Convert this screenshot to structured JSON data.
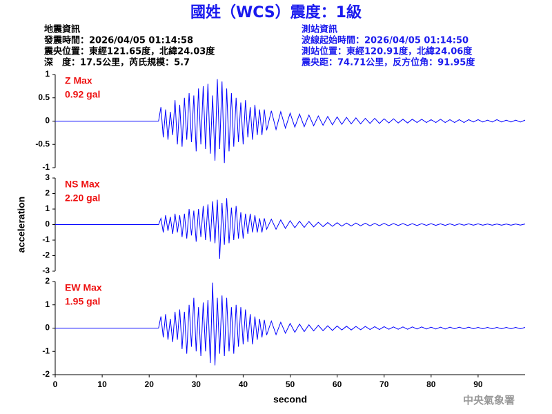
{
  "header": {
    "title": "國姓（WCS）震度：1級",
    "left": [
      "地震資訊",
      "發震時間：2026/04/05 01:14:58",
      "震央位置：東經121.65度，北緯24.03度",
      "深　度：17.5公里，芮氏規模：5.7"
    ],
    "right": [
      "測站資訊",
      "波線起始時間：2026/04/05 01:14:50",
      "測站位置：東經120.91度，北緯24.06度",
      "震央距：74.71公里，反方位角：91.95度"
    ]
  },
  "footer": "中央氣象署",
  "chart_data": [
    {
      "type": "line",
      "annotations": [
        "Z Max",
        "0.92 gal"
      ],
      "annotation_color": "#ee1111",
      "xlim": [
        0,
        100
      ],
      "ylim": [
        -1,
        1
      ],
      "yticks": [
        -1,
        -0.5,
        0,
        0.5,
        1
      ],
      "x": [
        0,
        22,
        22.5,
        23,
        23.5,
        24,
        24.5,
        25,
        25.5,
        26,
        26.5,
        27,
        27.5,
        28,
        28.5,
        29,
        29.5,
        30,
        30.5,
        31,
        31.5,
        32,
        32.5,
        33,
        33.5,
        34,
        34.5,
        35,
        35.5,
        36,
        36.5,
        37,
        37.5,
        38,
        38.5,
        39,
        39.5,
        40,
        40.5,
        41,
        41.5,
        42,
        42.5,
        43,
        43.5,
        44,
        44.5,
        45,
        46,
        47,
        48,
        49,
        50,
        51,
        52,
        53,
        54,
        55,
        56,
        57,
        58,
        59,
        60,
        61,
        62,
        63,
        64,
        65,
        66,
        67,
        68,
        69,
        70,
        71,
        72,
        73,
        74,
        75,
        76,
        77,
        78,
        79,
        80,
        81,
        82,
        83,
        84,
        85,
        86,
        87,
        88,
        89,
        90,
        91,
        92,
        93,
        94,
        95,
        96,
        97,
        98,
        99,
        100
      ],
      "series": [
        {
          "color": "#0000ff",
          "values": [
            0,
            0,
            0.3,
            -0.35,
            0.25,
            -0.4,
            0.2,
            -0.3,
            0.45,
            -0.5,
            0.35,
            -0.55,
            0.5,
            -0.4,
            0.6,
            -0.45,
            0.55,
            -0.65,
            0.7,
            -0.5,
            0.75,
            -0.6,
            0.8,
            -0.7,
            0.55,
            -0.85,
            0.9,
            -0.6,
            0.85,
            -0.9,
            0.7,
            -0.65,
            0.6,
            -0.55,
            0.5,
            -0.45,
            0.4,
            -0.5,
            0.45,
            -0.35,
            0.3,
            -0.4,
            0.35,
            -0.3,
            0.25,
            -0.3,
            0.25,
            -0.2,
            0.22,
            -0.18,
            0.2,
            -0.15,
            0.17,
            -0.13,
            0.15,
            -0.12,
            0.13,
            -0.1,
            0.11,
            -0.09,
            0.1,
            -0.08,
            0.09,
            -0.07,
            0.08,
            -0.06,
            0.07,
            -0.06,
            0.06,
            -0.05,
            0.06,
            -0.05,
            0.05,
            -0.04,
            0.05,
            -0.04,
            0.04,
            -0.04,
            0.04,
            -0.03,
            0.04,
            -0.03,
            0.03,
            -0.03,
            0.04,
            -0.03,
            0.03,
            -0.03,
            0.03,
            -0.03,
            0.03,
            -0.02,
            0.03,
            -0.02,
            0.02,
            -0.02,
            0.03,
            -0.02,
            0.02,
            -0.02,
            0.02,
            -0.02,
            0.02
          ]
        }
      ]
    },
    {
      "type": "line",
      "annotations": [
        "NS Max",
        "2.20 gal"
      ],
      "annotation_color": "#ee1111",
      "ylabel": "acceleration",
      "xlim": [
        0,
        100
      ],
      "ylim": [
        -3,
        3
      ],
      "yticks": [
        -3,
        -2,
        -1,
        0,
        1,
        2,
        3
      ],
      "x": [
        0,
        22,
        22.5,
        23,
        23.5,
        24,
        24.5,
        25,
        25.5,
        26,
        26.5,
        27,
        27.5,
        28,
        28.5,
        29,
        29.5,
        30,
        30.5,
        31,
        31.5,
        32,
        32.5,
        33,
        33.5,
        34,
        34.5,
        35,
        35.5,
        36,
        36.5,
        37,
        37.5,
        38,
        38.5,
        39,
        39.5,
        40,
        40.5,
        41,
        41.5,
        42,
        42.5,
        43,
        43.5,
        44,
        44.5,
        45,
        46,
        47,
        48,
        49,
        50,
        51,
        52,
        53,
        54,
        55,
        56,
        57,
        58,
        59,
        60,
        61,
        62,
        63,
        64,
        65,
        66,
        67,
        68,
        69,
        70,
        71,
        72,
        73,
        74,
        75,
        76,
        77,
        78,
        79,
        80,
        81,
        82,
        83,
        84,
        85,
        86,
        87,
        88,
        89,
        90,
        91,
        92,
        93,
        94,
        95,
        96,
        97,
        98,
        99,
        100
      ],
      "series": [
        {
          "color": "#0000ff",
          "values": [
            0,
            0,
            0.4,
            -0.5,
            0.6,
            -0.4,
            0.5,
            -0.6,
            0.7,
            -0.5,
            0.6,
            -0.8,
            0.7,
            -0.9,
            1.0,
            -0.7,
            0.9,
            -1.1,
            1.0,
            -0.8,
            1.2,
            -1.0,
            1.3,
            -1.1,
            1.5,
            -1.2,
            1.6,
            -2.2,
            1.4,
            -1.3,
            1.7,
            -1.2,
            1.1,
            -1.0,
            1.2,
            -0.9,
            0.8,
            -0.9,
            0.7,
            -0.6,
            0.7,
            -0.5,
            0.6,
            -0.5,
            0.4,
            -0.5,
            0.4,
            -0.3,
            0.35,
            -0.3,
            0.3,
            -0.25,
            0.25,
            -0.2,
            0.22,
            -0.18,
            0.2,
            -0.15,
            0.15,
            -0.13,
            0.13,
            -0.11,
            0.12,
            -0.1,
            0.1,
            -0.09,
            0.1,
            -0.08,
            0.09,
            -0.08,
            0.08,
            -0.07,
            0.08,
            -0.07,
            0.07,
            -0.06,
            0.07,
            -0.06,
            0.06,
            -0.06,
            0.06,
            -0.05,
            0.06,
            -0.05,
            0.05,
            -0.05,
            0.05,
            -0.05,
            0.05,
            -0.04,
            0.05,
            -0.04,
            0.05,
            -0.04,
            0.04,
            -0.04,
            0.04,
            -0.04,
            0.04,
            -0.04,
            0.04,
            -0.03,
            0.04
          ]
        }
      ]
    },
    {
      "type": "line",
      "annotations": [
        "EW Max",
        "1.95 gal"
      ],
      "annotation_color": "#ee1111",
      "xlabel": "second",
      "xlim": [
        0,
        100
      ],
      "xticks": [
        0,
        10,
        20,
        30,
        40,
        50,
        60,
        70,
        80,
        90
      ],
      "ylim": [
        -2,
        2
      ],
      "yticks": [
        -2,
        -1,
        0,
        1,
        2
      ],
      "x": [
        0,
        22,
        22.5,
        23,
        23.5,
        24,
        24.5,
        25,
        25.5,
        26,
        26.5,
        27,
        27.5,
        28,
        28.5,
        29,
        29.5,
        30,
        30.5,
        31,
        31.5,
        32,
        32.5,
        33,
        33.5,
        34,
        34.5,
        35,
        35.5,
        36,
        36.5,
        37,
        37.5,
        38,
        38.5,
        39,
        39.5,
        40,
        40.5,
        41,
        41.5,
        42,
        42.5,
        43,
        43.5,
        44,
        44.5,
        45,
        46,
        47,
        48,
        49,
        50,
        51,
        52,
        53,
        54,
        55,
        56,
        57,
        58,
        59,
        60,
        61,
        62,
        63,
        64,
        65,
        66,
        67,
        68,
        69,
        70,
        71,
        72,
        73,
        74,
        75,
        76,
        77,
        78,
        79,
        80,
        81,
        82,
        83,
        84,
        85,
        86,
        87,
        88,
        89,
        90,
        91,
        92,
        93,
        94,
        95,
        96,
        97,
        98,
        99,
        100
      ],
      "series": [
        {
          "color": "#0000ff",
          "values": [
            0,
            0,
            0.5,
            -0.4,
            0.6,
            -0.5,
            0.4,
            -0.6,
            0.7,
            -0.5,
            0.8,
            -0.9,
            0.7,
            -1.1,
            1.0,
            -0.8,
            1.3,
            -1.0,
            0.9,
            -1.2,
            1.1,
            -1.0,
            1.2,
            -1.5,
            1.95,
            -1.6,
            1.3,
            -1.1,
            1.4,
            -1.2,
            1.3,
            -1.0,
            0.9,
            -1.1,
            1.0,
            -0.8,
            0.9,
            -0.7,
            0.8,
            -0.6,
            0.6,
            -0.7,
            0.5,
            -0.5,
            0.4,
            -0.4,
            0.35,
            -0.3,
            0.3,
            -0.28,
            0.25,
            -0.22,
            0.2,
            -0.18,
            0.17,
            -0.15,
            0.14,
            -0.12,
            0.12,
            -0.11,
            0.1,
            -0.1,
            0.09,
            -0.08,
            0.08,
            -0.08,
            0.07,
            -0.07,
            0.07,
            -0.06,
            0.06,
            -0.06,
            0.06,
            -0.05,
            0.05,
            -0.05,
            0.05,
            -0.05,
            0.05,
            -0.04,
            0.05,
            -0.04,
            0.04,
            -0.04,
            0.04,
            -0.04,
            0.04,
            -0.03,
            0.04,
            -0.03,
            0.04,
            -0.03,
            0.03,
            -0.03,
            0.03,
            -0.03,
            0.03,
            -0.03,
            0.03,
            -0.03,
            0.03,
            -0.03,
            0.03
          ]
        }
      ]
    }
  ]
}
